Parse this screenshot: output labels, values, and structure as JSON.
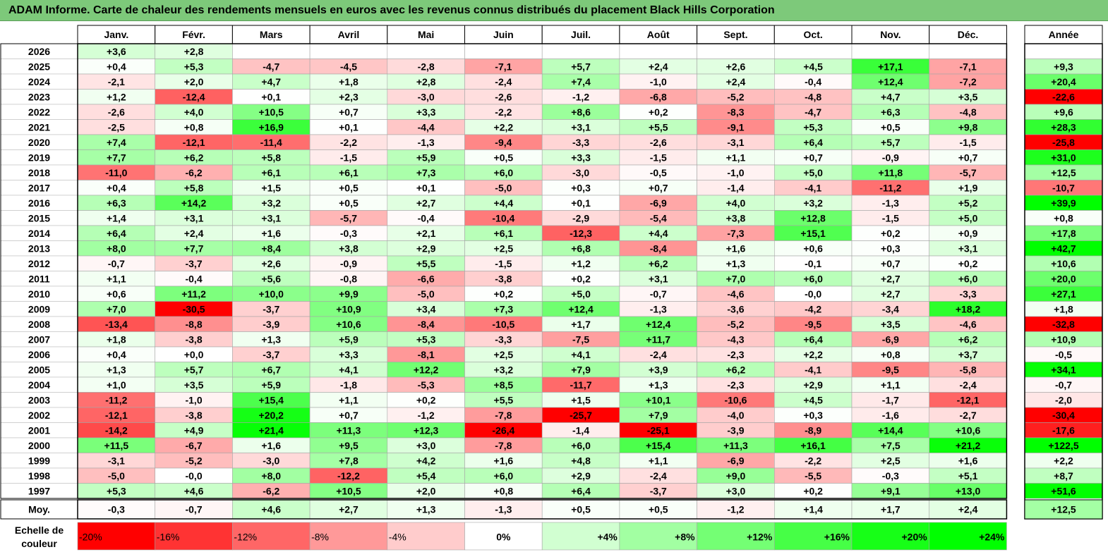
{
  "title": "ADAM Informe. Carte de chaleur des rendements mensuels en euros avec les revenus connus distribués du placement Black Hills Corporation",
  "chart_data": {
    "type": "heatmap",
    "months": [
      "Janv.",
      "Févr.",
      "Mars",
      "Avril",
      "Mai",
      "Juin",
      "Juil.",
      "Août",
      "Sept.",
      "Oct.",
      "Nov.",
      "Déc."
    ],
    "year_header": "Année",
    "avg_label": "Moy.",
    "rows": [
      {
        "year": "2026",
        "values": [
          "+3,6",
          "+2,8",
          "",
          "",
          "",
          "",
          "",
          "",
          "",
          "",
          "",
          ""
        ],
        "annual": ""
      },
      {
        "year": "2025",
        "values": [
          "+0,4",
          "+5,3",
          "-4,7",
          "-4,5",
          "-2,8",
          "-7,1",
          "+5,7",
          "+2,4",
          "+2,6",
          "+4,5",
          "+17,1",
          "-7,1"
        ],
        "annual": "+9,3"
      },
      {
        "year": "2024",
        "values": [
          "-2,1",
          "+2,0",
          "+4,7",
          "+1,8",
          "+2,8",
          "-2,4",
          "+7,4",
          "-1,0",
          "+2,4",
          "-0,4",
          "+12,4",
          "-7,2"
        ],
        "annual": "+20,4"
      },
      {
        "year": "2023",
        "values": [
          "+1,2",
          "-12,4",
          "+0,1",
          "+2,3",
          "-3,0",
          "-2,6",
          "-1,2",
          "-6,8",
          "-5,2",
          "-4,8",
          "+4,7",
          "+3,5"
        ],
        "annual": "-22,6"
      },
      {
        "year": "2022",
        "values": [
          "-2,6",
          "+4,0",
          "+10,5",
          "+0,7",
          "+3,3",
          "-2,2",
          "+8,6",
          "+0,2",
          "-8,3",
          "-4,7",
          "+6,3",
          "-4,8"
        ],
        "annual": "+9,6"
      },
      {
        "year": "2021",
        "values": [
          "-2,5",
          "+0,8",
          "+16,9",
          "+0,1",
          "-4,4",
          "+2,2",
          "+3,1",
          "+5,5",
          "-9,1",
          "+5,3",
          "+0,5",
          "+9,8"
        ],
        "annual": "+28,3"
      },
      {
        "year": "2020",
        "values": [
          "+7,4",
          "-12,1",
          "-11,4",
          "-2,2",
          "-1,3",
          "-9,4",
          "-3,3",
          "-2,6",
          "-3,1",
          "+6,4",
          "+5,7",
          "-1,5"
        ],
        "annual": "-25,8"
      },
      {
        "year": "2019",
        "values": [
          "+7,7",
          "+6,2",
          "+5,8",
          "-1,5",
          "+5,9",
          "+0,5",
          "+3,3",
          "-1,5",
          "+1,1",
          "+0,7",
          "-0,9",
          "+0,7"
        ],
        "annual": "+31,0"
      },
      {
        "year": "2018",
        "values": [
          "-11,0",
          "-6,2",
          "+6,1",
          "+6,1",
          "+7,3",
          "+6,0",
          "-3,0",
          "-0,5",
          "-1,0",
          "+5,0",
          "+11,8",
          "-5,7"
        ],
        "annual": "+12,5"
      },
      {
        "year": "2017",
        "values": [
          "+0,4",
          "+5,8",
          "+1,5",
          "+0,5",
          "+0,1",
          "-5,0",
          "+0,3",
          "+0,7",
          "-1,4",
          "-4,1",
          "-11,2",
          "+1,9"
        ],
        "annual": "-10,7"
      },
      {
        "year": "2016",
        "values": [
          "+6,3",
          "+14,2",
          "+3,2",
          "+0,5",
          "+2,7",
          "+4,4",
          "+0,1",
          "-6,9",
          "+4,0",
          "+3,2",
          "-1,3",
          "+5,2"
        ],
        "annual": "+39,9"
      },
      {
        "year": "2015",
        "values": [
          "+1,4",
          "+3,1",
          "+3,1",
          "-5,7",
          "-0,4",
          "-10,4",
          "-2,9",
          "-5,4",
          "+3,8",
          "+12,8",
          "-1,5",
          "+5,0"
        ],
        "annual": "+0,8"
      },
      {
        "year": "2014",
        "values": [
          "+6,4",
          "+2,4",
          "+1,6",
          "-0,3",
          "+2,1",
          "+6,1",
          "-12,3",
          "+4,4",
          "-7,3",
          "+15,1",
          "+0,2",
          "+0,9"
        ],
        "annual": "+17,8"
      },
      {
        "year": "2013",
        "values": [
          "+8,0",
          "+7,7",
          "+8,4",
          "+3,8",
          "+2,9",
          "+2,5",
          "+6,8",
          "-8,4",
          "+1,6",
          "+0,6",
          "+0,3",
          "+3,1"
        ],
        "annual": "+42,7"
      },
      {
        "year": "2012",
        "values": [
          "-0,7",
          "-3,7",
          "+2,6",
          "-0,9",
          "+5,5",
          "-1,5",
          "+1,2",
          "+6,2",
          "+1,3",
          "-0,1",
          "+0,7",
          "+0,2"
        ],
        "annual": "+10,6"
      },
      {
        "year": "2011",
        "values": [
          "+1,1",
          "-0,4",
          "+5,6",
          "-0,8",
          "-6,6",
          "-3,8",
          "+0,2",
          "+3,1",
          "+7,0",
          "+6,0",
          "+2,7",
          "+6,0"
        ],
        "annual": "+20,0"
      },
      {
        "year": "2010",
        "values": [
          "+0,6",
          "+11,2",
          "+10,0",
          "+9,9",
          "-5,0",
          "+0,2",
          "+5,0",
          "-0,7",
          "-4,6",
          "-0,0",
          "+2,7",
          "-3,3"
        ],
        "annual": "+27,1"
      },
      {
        "year": "2009",
        "values": [
          "+7,0",
          "-30,5",
          "-3,7",
          "+10,9",
          "+3,4",
          "+7,3",
          "+12,4",
          "-1,3",
          "-3,6",
          "-4,2",
          "-3,4",
          "+18,2"
        ],
        "annual": "+1,8"
      },
      {
        "year": "2008",
        "values": [
          "-13,4",
          "-8,8",
          "-3,9",
          "+10,6",
          "-8,4",
          "-10,5",
          "+1,7",
          "+12,4",
          "-5,2",
          "-9,5",
          "+3,5",
          "-4,6"
        ],
        "annual": "-32,8"
      },
      {
        "year": "2007",
        "values": [
          "+1,8",
          "-3,8",
          "+1,3",
          "+5,9",
          "+5,3",
          "-3,3",
          "-7,5",
          "+11,7",
          "-4,3",
          "+6,4",
          "-6,9",
          "+6,2"
        ],
        "annual": "+10,9"
      },
      {
        "year": "2006",
        "values": [
          "+0,4",
          "+0,0",
          "-3,7",
          "+3,3",
          "-8,1",
          "+2,5",
          "+4,1",
          "-2,4",
          "-2,3",
          "+2,2",
          "+0,8",
          "+3,7"
        ],
        "annual": "-0,5"
      },
      {
        "year": "2005",
        "values": [
          "+1,3",
          "+5,7",
          "+6,7",
          "+4,1",
          "+12,2",
          "+3,2",
          "+7,9",
          "+3,9",
          "+6,2",
          "-4,1",
          "-9,5",
          "-5,8"
        ],
        "annual": "+34,1"
      },
      {
        "year": "2004",
        "values": [
          "+1,0",
          "+3,5",
          "+5,9",
          "-1,8",
          "-5,3",
          "+8,5",
          "-11,7",
          "+1,3",
          "-2,3",
          "+2,9",
          "+1,1",
          "-2,4"
        ],
        "annual": "-0,7"
      },
      {
        "year": "2003",
        "values": [
          "-11,2",
          "-1,0",
          "+15,4",
          "+1,1",
          "+0,2",
          "+5,5",
          "+1,5",
          "+10,1",
          "-10,6",
          "+4,5",
          "-1,7",
          "-12,1"
        ],
        "annual": "-2,0"
      },
      {
        "year": "2002",
        "values": [
          "-12,1",
          "-3,8",
          "+20,2",
          "+0,7",
          "-1,2",
          "-7,8",
          "-25,7",
          "+7,9",
          "-4,0",
          "+0,3",
          "-1,6",
          "-2,7"
        ],
        "annual": "-30,4"
      },
      {
        "year": "2001",
        "values": [
          "-14,2",
          "+4,9",
          "+21,4",
          "+11,3",
          "+12,3",
          "-26,4",
          "-1,4",
          "-25,1",
          "-3,9",
          "-8,9",
          "+14,4",
          "+10,6"
        ],
        "annual": "-17,6"
      },
      {
        "year": "2000",
        "values": [
          "+11,5",
          "-6,7",
          "+1,6",
          "+9,5",
          "+3,0",
          "-7,8",
          "+6,0",
          "+15,4",
          "+11,3",
          "+16,1",
          "+7,5",
          "+21,2"
        ],
        "annual": "+122,5"
      },
      {
        "year": "1999",
        "values": [
          "-3,1",
          "-5,2",
          "-3,0",
          "+7,8",
          "+4,2",
          "+1,6",
          "+4,8",
          "+1,1",
          "-6,9",
          "-2,2",
          "+2,5",
          "+1,6"
        ],
        "annual": "+2,2"
      },
      {
        "year": "1998",
        "values": [
          "-5,0",
          "-0,0",
          "+8,0",
          "-12,2",
          "+5,4",
          "+6,0",
          "+2,9",
          "-2,4",
          "+9,0",
          "-5,5",
          "-0,3",
          "+5,1"
        ],
        "annual": "+8,7"
      },
      {
        "year": "1997",
        "values": [
          "+5,3",
          "+4,6",
          "-6,2",
          "+10,5",
          "+2,0",
          "+0,8",
          "+6,4",
          "-3,7",
          "+3,0",
          "+0,2",
          "+9,1",
          "+13,0"
        ],
        "annual": "+51,6"
      }
    ],
    "average": {
      "values": [
        "-0,3",
        "-0,7",
        "+4,6",
        "+2,7",
        "+1,3",
        "-1,3",
        "+0,5",
        "+0,5",
        "-1,2",
        "+1,4",
        "+1,7",
        "+2,4"
      ],
      "annual": "+12,5"
    },
    "scale": {
      "label_line1": "Echelle de",
      "label_line2": "couleur",
      "items": [
        "-20%",
        "-16%",
        "-12%",
        "-8%",
        "-4%",
        "0%",
        "+4%",
        "+8%",
        "+12%",
        "+16%",
        "+20%",
        "+24%"
      ]
    },
    "colors": {
      "title_bg": "#7dc97a",
      "negative_max": "#ff0000",
      "positive_max": "#00ff00",
      "neutral": "#ffffff",
      "border": "#a6a6a6"
    }
  }
}
